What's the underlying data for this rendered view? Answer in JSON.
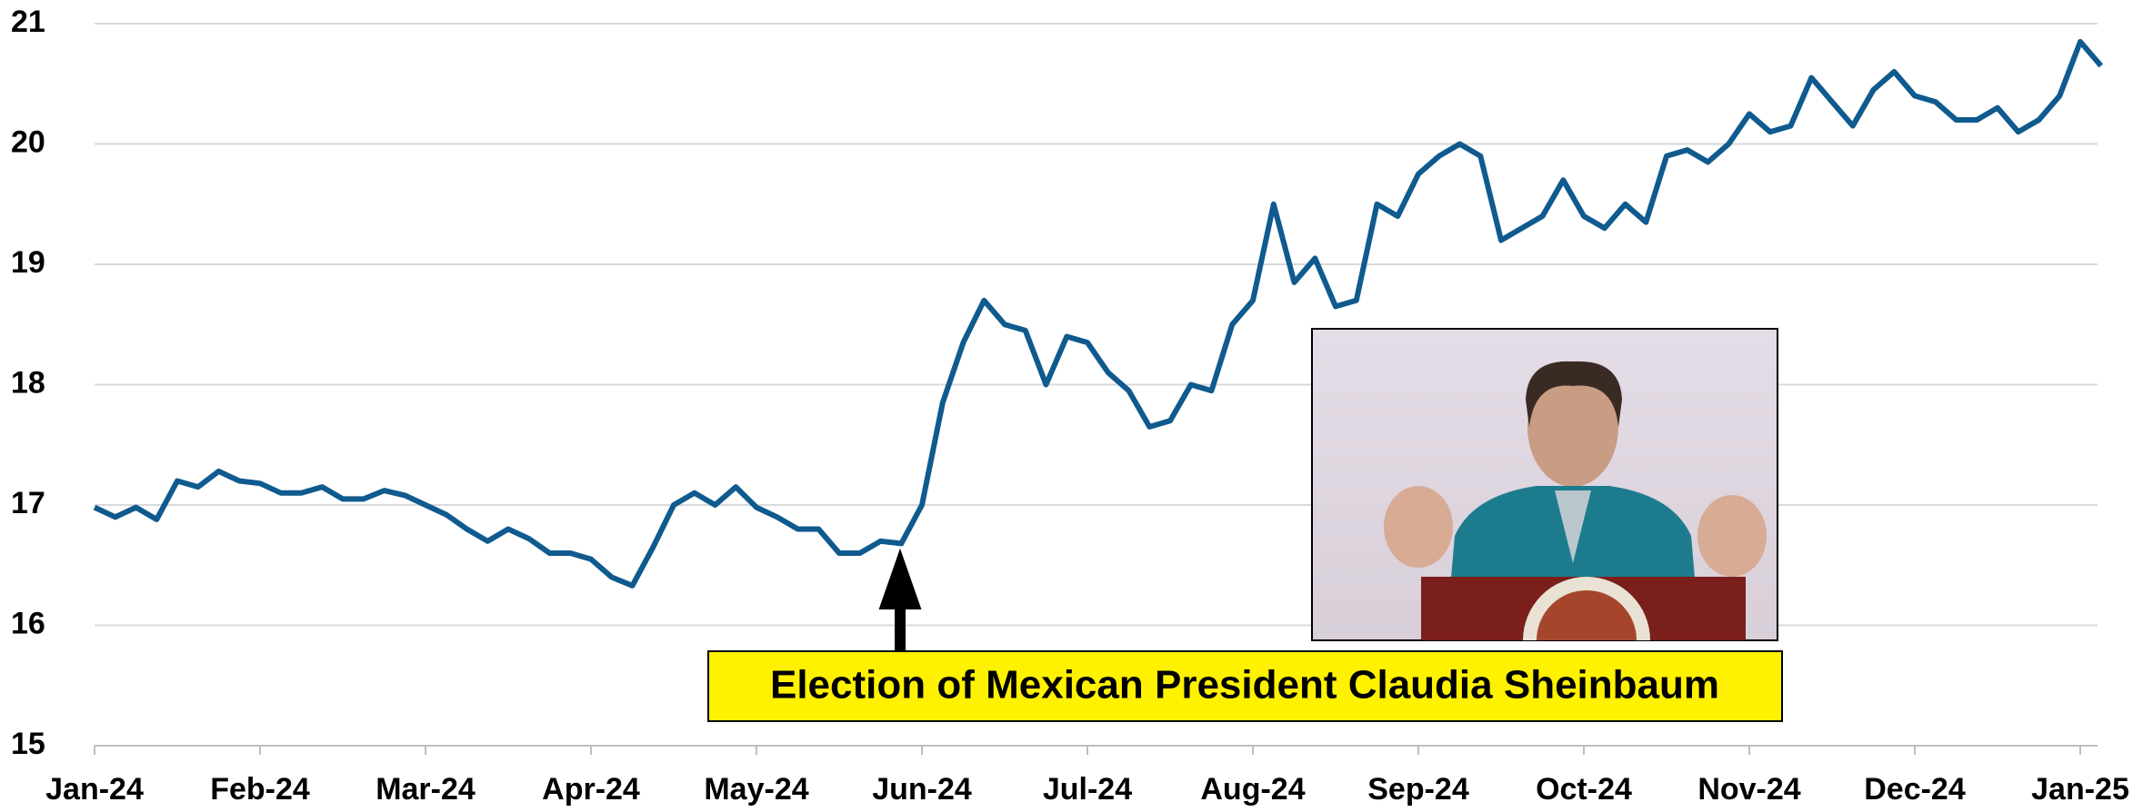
{
  "chart_data": {
    "type": "line",
    "categories": [
      "Jan-24",
      null,
      null,
      null,
      null,
      null,
      null,
      null,
      "Feb-24",
      null,
      null,
      null,
      null,
      null,
      null,
      null,
      "Mar-24",
      null,
      null,
      null,
      null,
      null,
      null,
      null,
      "Apr-24",
      null,
      null,
      null,
      null,
      null,
      null,
      null,
      "May-24",
      null,
      null,
      null,
      null,
      null,
      null,
      null,
      "Jun-24",
      null,
      null,
      null,
      null,
      null,
      null,
      null,
      "Jul-24",
      null,
      null,
      null,
      null,
      null,
      null,
      null,
      "Aug-24",
      null,
      null,
      null,
      null,
      null,
      null,
      null,
      "Sep-24",
      null,
      null,
      null,
      null,
      null,
      null,
      null,
      "Oct-24",
      null,
      null,
      null,
      null,
      null,
      null,
      null,
      "Nov-24",
      null,
      null,
      null,
      null,
      null,
      null,
      null,
      "Dec-24",
      null,
      null,
      null,
      null,
      null,
      null,
      null,
      "Jan-25",
      null
    ],
    "values": [
      16.98,
      16.9,
      16.98,
      16.88,
      17.2,
      17.15,
      17.28,
      17.2,
      17.18,
      17.1,
      17.1,
      17.15,
      17.05,
      17.05,
      17.12,
      17.08,
      17.0,
      16.92,
      16.8,
      16.7,
      16.8,
      16.72,
      16.6,
      16.6,
      16.55,
      16.4,
      16.33,
      16.65,
      17.0,
      17.1,
      17.0,
      17.15,
      16.98,
      16.9,
      16.8,
      16.8,
      16.6,
      16.6,
      16.7,
      16.68,
      17.0,
      17.85,
      18.35,
      18.7,
      18.5,
      18.45,
      18.0,
      18.4,
      18.35,
      18.1,
      17.95,
      17.65,
      17.7,
      18.0,
      17.95,
      18.5,
      18.7,
      19.5,
      18.85,
      19.05,
      18.65,
      18.7,
      19.5,
      19.4,
      19.75,
      19.9,
      20.0,
      19.9,
      19.2,
      19.3,
      19.4,
      19.7,
      19.4,
      19.3,
      19.5,
      19.35,
      19.9,
      19.95,
      19.85,
      20.0,
      20.25,
      20.1,
      20.15,
      20.55,
      20.35,
      20.15,
      20.45,
      20.6,
      20.4,
      20.35,
      20.2,
      20.2,
      20.3,
      20.1,
      20.2,
      20.4,
      20.85,
      20.65
    ],
    "color": "#0f5a8e",
    "ylim": [
      15,
      21
    ],
    "yticks": [
      15,
      16,
      17,
      18,
      19,
      20,
      21
    ],
    "grid": true,
    "annotation": "Election of Mexican President Claudia Sheinbaum"
  }
}
